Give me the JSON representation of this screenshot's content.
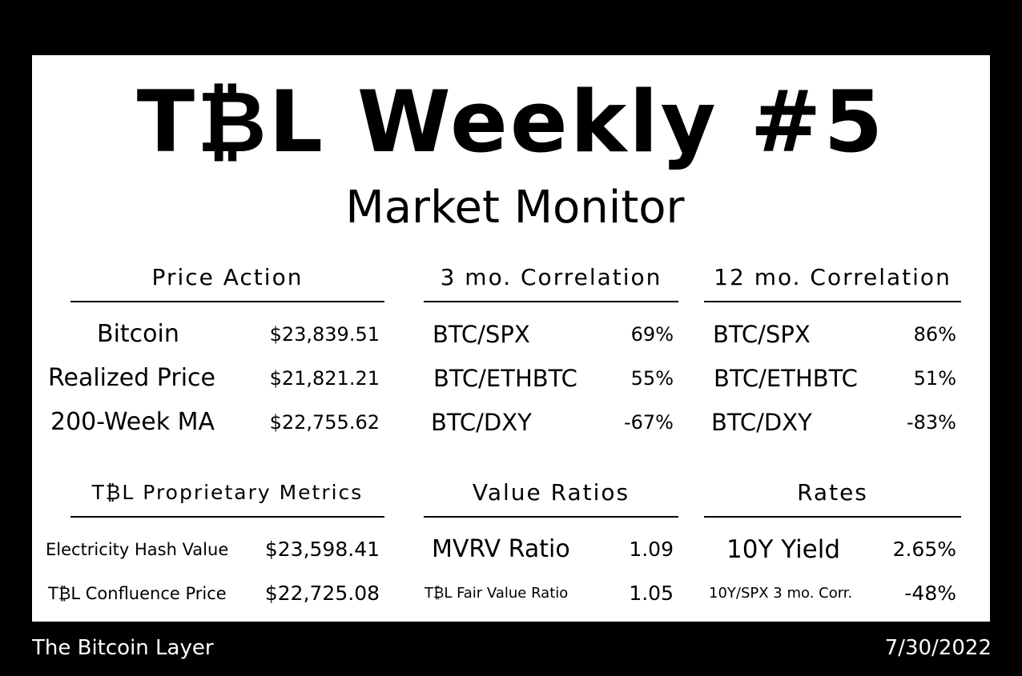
{
  "header": {
    "title": "T₿L Weekly #5",
    "subtitle": "Market Monitor"
  },
  "price_action": {
    "heading": "Price Action",
    "rows": [
      {
        "label": "Bitcoin",
        "value": "$23,839.51"
      },
      {
        "label": "Realized Price",
        "value": "$21,821.21"
      },
      {
        "label": "200-Week MA",
        "value": "$22,755.62"
      }
    ]
  },
  "corr_3mo": {
    "heading": "3 mo. Correlation",
    "rows": [
      {
        "label": "BTC/SPX",
        "value": "69%"
      },
      {
        "label": "BTC/ETHBTC",
        "value": "55%"
      },
      {
        "label": "BTC/DXY",
        "value": "-67%"
      }
    ]
  },
  "corr_12mo": {
    "heading": "12 mo. Correlation",
    "rows": [
      {
        "label": "BTC/SPX",
        "value": "86%"
      },
      {
        "label": "BTC/ETHBTC",
        "value": "51%"
      },
      {
        "label": "BTC/DXY",
        "value": "-83%"
      }
    ]
  },
  "proprietary": {
    "heading": "T₿L Proprietary Metrics",
    "rows": [
      {
        "label": "Electricity Hash Value",
        "value": "$23,598.41"
      },
      {
        "label": "T₿L Confluence Price",
        "value": "$22,725.08"
      }
    ]
  },
  "value_ratios": {
    "heading": "Value Ratios",
    "rows": [
      {
        "label": "MVRV Ratio",
        "value": "1.09"
      },
      {
        "label": "T₿L Fair Value Ratio",
        "value": "1.05"
      }
    ]
  },
  "rates": {
    "heading": "Rates",
    "rows": [
      {
        "label": "10Y Yield",
        "value": "2.65%"
      },
      {
        "label": "10Y/SPX 3 mo. Corr.",
        "value": "-48%"
      }
    ]
  },
  "footer": {
    "brand": "The Bitcoin Layer",
    "date": "7/30/2022"
  }
}
